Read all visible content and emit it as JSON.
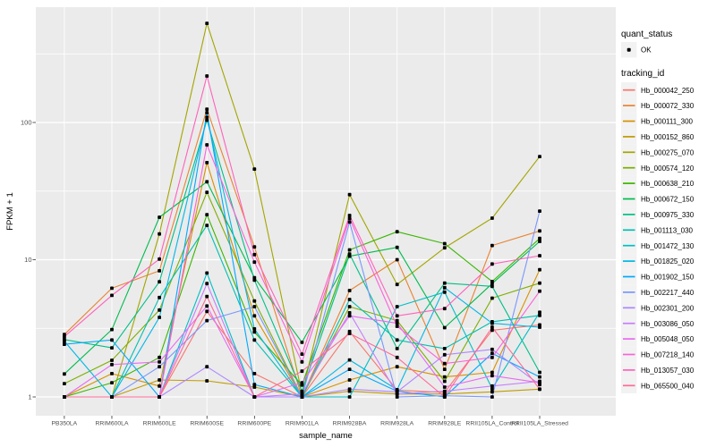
{
  "chart_data": {
    "type": "line",
    "title": "",
    "xlabel": "sample_name",
    "ylabel": "FPKM + 1",
    "y_scale": "log10",
    "y_ticks": [
      "1",
      "10",
      "100"
    ],
    "y_range_decades": [
      0,
      2.84
    ],
    "grid": "on",
    "legend_position": "right",
    "categories": [
      "PB350LA",
      "RRIM600LA",
      "RRIM600LE",
      "RRIM600SE",
      "RRIM600PE",
      "RRIM901LA",
      "RRIM928BA",
      "RRIM928LA",
      "RRIM928LE",
      "RRII105LA_Control",
      "RRII105LA_Stressed"
    ],
    "series": [
      {
        "name": "Hb_000042_250",
        "color": "#F8766D",
        "values": [
          1,
          1,
          1,
          4.2,
          1.48,
          1,
          3.0,
          1.12,
          1.08,
          3.06,
          3.35
        ]
      },
      {
        "name": "Hb_000072_330",
        "color": "#EA8331",
        "values": [
          2.85,
          6.2,
          8.3,
          125,
          12.4,
          1,
          5.96,
          10,
          1.59,
          12.7,
          16.2
        ]
      },
      {
        "name": "Hb_000111_300",
        "color": "#D89000",
        "values": [
          1,
          1.48,
          1.2,
          51,
          3.9,
          1,
          1.33,
          1.66,
          1.4,
          1.51,
          8.45
        ]
      },
      {
        "name": "Hb_000152_860",
        "color": "#C09B00",
        "values": [
          1,
          1,
          1.33,
          1.31,
          1.18,
          1,
          1.1,
          1.05,
          1.05,
          1.09,
          1.14
        ]
      },
      {
        "name": "Hb_000275_070",
        "color": "#A3A500",
        "values": [
          1,
          1,
          15.4,
          528,
          45.8,
          1.05,
          29.8,
          6.6,
          12.2,
          20.1,
          56.5
        ]
      },
      {
        "name": "Hb_000574_120",
        "color": "#7CAE00",
        "values": [
          1.25,
          1.85,
          4.3,
          31,
          5.0,
          1,
          4.55,
          3.6,
          1.3,
          5.25,
          6.75
        ]
      },
      {
        "name": "Hb_000638_210",
        "color": "#39B600",
        "values": [
          1,
          1.27,
          1.94,
          21.3,
          2.97,
          1.22,
          11.8,
          16,
          13.1,
          6.93,
          14.3
        ]
      },
      {
        "name": "Hb_000672_150",
        "color": "#00BB4E",
        "values": [
          1.47,
          3.1,
          20.4,
          37,
          7.4,
          2.5,
          10.6,
          12.3,
          3.2,
          6.7,
          13.6
        ]
      },
      {
        "name": "Hb_000975_330",
        "color": "#00C087",
        "values": [
          2.62,
          2.28,
          6.9,
          104,
          7.1,
          1.1,
          11,
          2.25,
          6.75,
          6.4,
          1.51
        ]
      },
      {
        "name": "Hb_001113_030",
        "color": "#00C0B2",
        "values": [
          1,
          1,
          5.3,
          17.8,
          2.6,
          1,
          5.13,
          2.6,
          2.25,
          3.53,
          3.93
        ]
      },
      {
        "name": "Hb_001472_130",
        "color": "#00BFC4",
        "values": [
          1,
          1,
          1,
          8.0,
          1,
          1,
          1,
          4.55,
          5.8,
          1.15,
          4.14
        ]
      },
      {
        "name": "Hb_001825_020",
        "color": "#00B8E5",
        "values": [
          2.55,
          1,
          3.8,
          109,
          3.13,
          1,
          1.86,
          1.13,
          6.25,
          3.44,
          3.22
        ]
      },
      {
        "name": "Hb_001902_150",
        "color": "#00A9FF",
        "values": [
          2.42,
          2.6,
          1,
          118,
          1.23,
          1,
          1.59,
          1.1,
          1,
          2.08,
          1.4
        ]
      },
      {
        "name": "Hb_002217_440",
        "color": "#7997FF",
        "values": [
          1,
          1,
          1.66,
          3.6,
          4.55,
          1,
          18.8,
          1,
          1.02,
          1,
          22.6
        ]
      },
      {
        "name": "Hb_002301_200",
        "color": "#AE87FF",
        "values": [
          1,
          1,
          1,
          1.66,
          1,
          1,
          1.14,
          1.09,
          2.03,
          2.22,
          1.23
        ]
      },
      {
        "name": "Hb_003086_050",
        "color": "#C77CFF",
        "values": [
          1,
          1,
          1,
          6.7,
          1,
          1.05,
          4.1,
          1.05,
          1.1,
          1.2,
          1.3
        ]
      },
      {
        "name": "Hb_005048_050",
        "color": "#E76BF3",
        "values": [
          1,
          1.72,
          1.8,
          4.6,
          1,
          1.27,
          3.9,
          3.44,
          1.18,
          1.43,
          1.27
        ]
      },
      {
        "name": "Hb_007218_140",
        "color": "#FA62DB",
        "values": [
          1,
          1,
          1,
          68.7,
          9.6,
          1.8,
          20,
          3.27,
          1.75,
          1.94,
          5.9
        ]
      },
      {
        "name": "Hb_013057_030",
        "color": "#FF62BC",
        "values": [
          2.75,
          5.5,
          10.1,
          218,
          10.9,
          2.05,
          21,
          3.9,
          4.4,
          9.3,
          10.7
        ]
      },
      {
        "name": "Hb_065500_040",
        "color": "#FF6A98",
        "values": [
          1,
          1,
          1,
          5.4,
          1,
          1.54,
          2.9,
          1.94,
          1,
          3.22,
          1.14
        ]
      }
    ],
    "legend": {
      "quant_status_title": "quant_status",
      "quant_status_items": [
        "OK"
      ],
      "tracking_title": "tracking_id"
    },
    "styles": {
      "panel_bg": "#EBEBEB",
      "grid_color": "#FFFFFF",
      "axis_text": "#4D4D4D",
      "tick_color": "#333333",
      "legend_key_bg": "#F2F2F2",
      "point_color": "#000000"
    }
  }
}
